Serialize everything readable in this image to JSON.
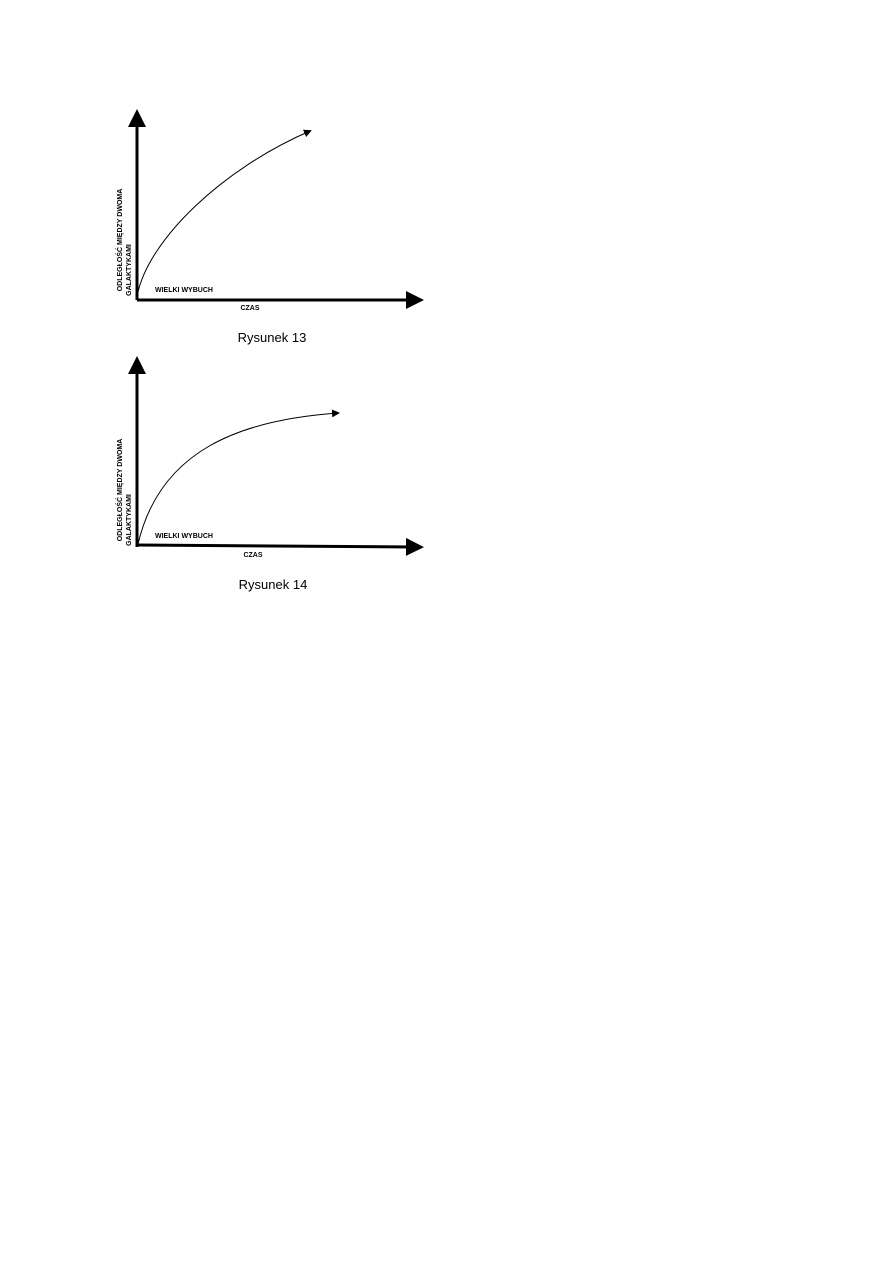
{
  "figures": [
    {
      "y_label": [
        "ODLEGŁOŚĆ MIĘDZY DWOMA",
        "GALAKTYKAMI"
      ],
      "start_label": "WIELKI WYBUCH",
      "x_label": "CZAS",
      "caption": "Rysunek 13"
    },
    {
      "y_label": [
        "ODLEGŁOŚĆ MIĘDZY DWOMA",
        "GALAKTYKAMI"
      ],
      "start_label": "WIELKI WYBUCH",
      "x_label": "CZAS",
      "caption": "Rysunek 14"
    }
  ]
}
